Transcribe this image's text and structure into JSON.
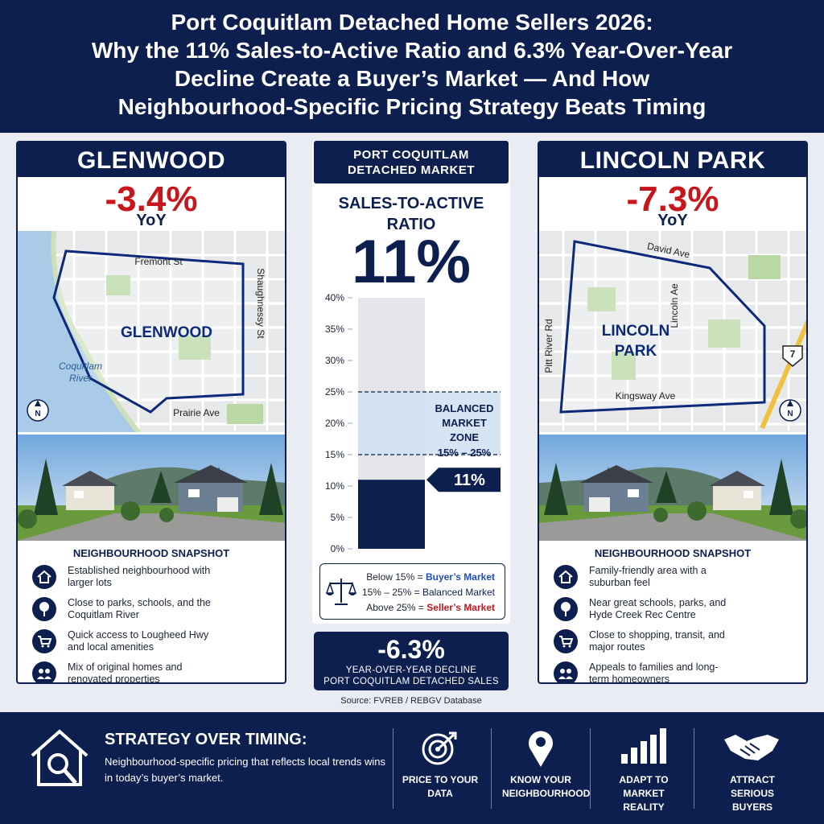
{
  "header": {
    "title_lines": [
      "Port Coquitlam Detached Home Sellers 2026:",
      "Why the 11% Sales-to-Active Ratio and 6.3% Year-Over-Year",
      "Decline Create a Buyer’s Market — And How",
      "Neighbourhood-Specific Pricing Strategy Beats Timing"
    ]
  },
  "neighbourhoods": [
    {
      "name": "GLENWOOD",
      "change": "-3.4%",
      "change_unit": "YoY",
      "map_labels": {
        "north": "Fremont St",
        "east": "Shaughnessy St",
        "south": "Prairie Ave",
        "river": [
          "Coquitlam",
          "River"
        ],
        "area": [
          "GLENWOOD"
        ],
        "compass": "N"
      },
      "snapshot_title": "NEIGHBOURHOOD SNAPSHOT",
      "snapshot": [
        "Established neighbourhood with larger lots",
        "Close to parks, schools, and the Coquitlam River",
        "Quick access to Lougheed Hwy and local amenities",
        "Mix of original homes and renovated properties"
      ]
    },
    {
      "name": "LINCOLN PARK",
      "change": "-7.3%",
      "change_unit": "YoY",
      "map_labels": {
        "north": "David Ave",
        "east": "Lincoln Ae",
        "west": "Pitt River Rd",
        "south": "Kingsway Ave",
        "area": [
          "LINCOLN",
          "PARK"
        ],
        "highway": "7",
        "compass": "N"
      },
      "snapshot_title": "NEIGHBOURHOOD SNAPSHOT",
      "snapshot": [
        "Family-friendly area with a suburban feel",
        "Near great schools, parks, and Hyde Creek Rec Centre",
        "Close to shopping, transit, and major routes",
        "Appeals to families and long-term homeowners"
      ]
    }
  ],
  "market": {
    "title": "PORT COQUITLAM DETACHED MARKET",
    "metric": "SALES-TO-ACTIVE RATIO",
    "big_value": "11%",
    "ratio_chart": {
      "type": "bar",
      "value": 11,
      "value_label": "11%",
      "color": "#0d1f4f",
      "ylim": [
        0,
        40
      ],
      "yticks": [
        {
          "value": 0,
          "label": "0%"
        },
        {
          "value": 5,
          "label": "5%"
        },
        {
          "value": 10,
          "label": "10%"
        },
        {
          "value": 15,
          "label": "15%"
        },
        {
          "value": 20,
          "label": "20%"
        },
        {
          "value": 25,
          "label": "25%"
        },
        {
          "value": 30,
          "label": "30%"
        },
        {
          "value": 35,
          "label": "35%"
        },
        {
          "value": 40,
          "label": "40%"
        }
      ],
      "zone": {
        "label": "BALANCED MARKET ZONE",
        "range": [
          15,
          25
        ],
        "range_label": "15% – 25%"
      }
    },
    "legend": [
      {
        "prefix": "Below 15% =",
        "label": "Buyer’s Market",
        "color": "#1f4fbf"
      },
      {
        "prefix": "15% – 25% =",
        "label": "Balanced Market",
        "color": "#0d1f4f"
      },
      {
        "prefix": "Above 25% =",
        "label": "Seller’s Market",
        "color": "#c8161d"
      }
    ],
    "yoy": {
      "value": "-6.3%",
      "label_lines": [
        "YEAR-OVER-YEAR DECLINE",
        "PORT COQUITLAM DETACHED SALES"
      ]
    },
    "source": "Source: FVREB / REBGV Database"
  },
  "footer": {
    "title": "STRATEGY OVER TIMING:",
    "text": "Neighbourhood-specific pricing that reflects local trends wins in today’s buyer’s market.",
    "items": [
      "PRICE TO YOUR DATA",
      "KNOW YOUR NEIGHBOURHOOD",
      "ADAPT TO MARKET REALITY",
      "ATTRACT SERIOUS BUYERS"
    ]
  }
}
